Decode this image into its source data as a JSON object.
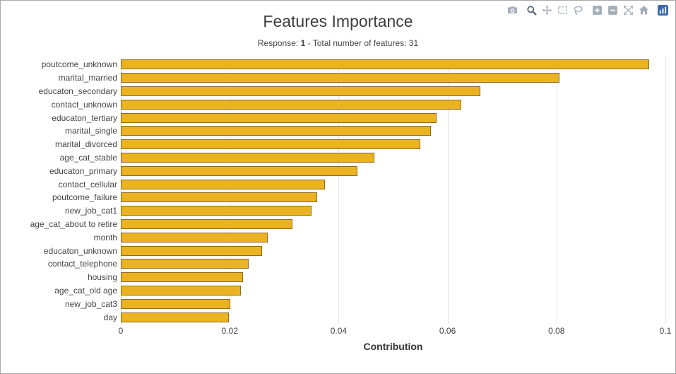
{
  "window": {
    "background": "#ffffff",
    "border_color": "#a9a9a9"
  },
  "modebar": {
    "icon_color": "#a5adb9",
    "active_icon_color": "#55606e",
    "logo_color": "#3969b1",
    "icons": [
      "camera-icon",
      "zoom-icon",
      "pan-icon",
      "box-select-icon",
      "lasso-select-icon",
      "zoom-in-icon",
      "zoom-out-icon",
      "autoscale-icon",
      "reset-axes-icon",
      "plotly-logo-icon"
    ]
  },
  "chart_data": {
    "type": "bar",
    "orientation": "horizontal",
    "title": "Features Importance",
    "subtitle": {
      "prefix": "Response: ",
      "response": "1",
      "rest": " - Total number of features: 31"
    },
    "xlabel": "Contribution",
    "ylabel": "",
    "xlim": [
      0,
      0.1
    ],
    "xticks": [
      0,
      0.02,
      0.04,
      0.06,
      0.08,
      0.1
    ],
    "xtick_labels": [
      "0",
      "0.02",
      "0.04",
      "0.06",
      "0.08",
      "0.1"
    ],
    "grid": true,
    "legend": false,
    "bar_color": "#EBB321",
    "bar_border_color": "#8C6D1F",
    "categories": [
      "poutcome_unknown",
      "marital_married",
      "educaton_secondary",
      "contact_unknown",
      "educaton_tertiary",
      "marital_single",
      "marital_divorced",
      "age_cat_stable",
      "educaton_primary",
      "contact_cellular",
      "poutcome_failure",
      "new_job_cat1",
      "age_cat_about to retire",
      "month",
      "educaton_unknown",
      "contact_telephone",
      "housing",
      "age_cat_old age",
      "new_job_cat3",
      "day"
    ],
    "values": [
      0.097,
      0.0805,
      0.066,
      0.0625,
      0.058,
      0.057,
      0.055,
      0.0465,
      0.0435,
      0.0375,
      0.036,
      0.035,
      0.0315,
      0.027,
      0.026,
      0.0235,
      0.0225,
      0.022,
      0.0201,
      0.0198
    ]
  }
}
